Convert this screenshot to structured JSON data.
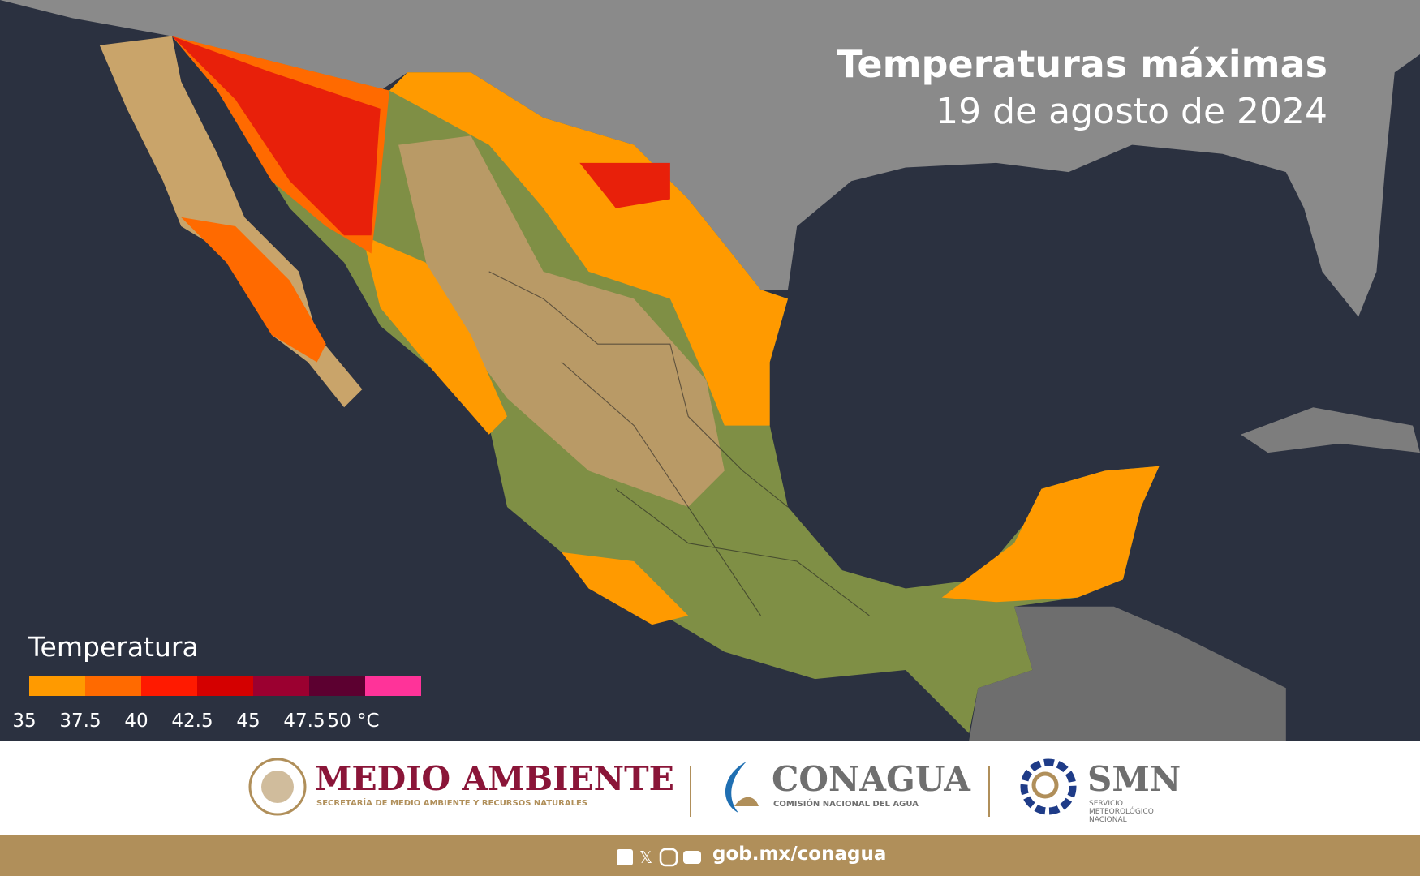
{
  "header": {
    "title": "Temperaturas máximas",
    "subtitle": "19 de agosto de 2024"
  },
  "legend": {
    "title": "Temperatura",
    "colors": [
      "#ff9a00",
      "#ff6a00",
      "#ff1a00",
      "#d40000",
      "#9b0030",
      "#5c0030",
      "#ff3399"
    ],
    "ticks": [
      "35",
      "37.5",
      "40",
      "42.5",
      "45",
      "47.5",
      "50 °C"
    ]
  },
  "logos": {
    "semarnat": {
      "name": "MEDIO AMBIENTE",
      "subtitle": "SECRETARÍA DE MEDIO AMBIENTE Y RECURSOS NATURALES"
    },
    "conagua": {
      "name": "CONAGUA",
      "subtitle": "COMISIÓN NACIONAL DEL AGUA"
    },
    "smn": {
      "name": "SMN",
      "subtitle": [
        "SERVICIO",
        "METEOROLÓGICO",
        "NACIONAL"
      ]
    }
  },
  "footer": {
    "link": "gob.mx/conagua"
  }
}
